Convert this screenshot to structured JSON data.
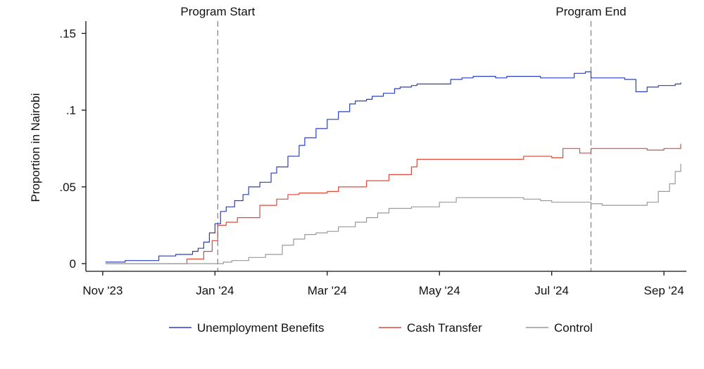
{
  "chart_data": {
    "type": "line",
    "title": "",
    "xlabel": "",
    "ylabel": "Proportion in Nairobi",
    "x_unit": "months since Nov 1, 2023",
    "xlim": [
      -0.3,
      10.4
    ],
    "ylim": [
      -0.005,
      0.158
    ],
    "x_ticks": [
      {
        "value": 0,
        "label": "Nov '23"
      },
      {
        "value": 2,
        "label": "Jan '24"
      },
      {
        "value": 4,
        "label": "Mar '24"
      },
      {
        "value": 6,
        "label": "May '24"
      },
      {
        "value": 8,
        "label": "Jul '24"
      },
      {
        "value": 10,
        "label": "Sep '24"
      }
    ],
    "y_ticks": [
      {
        "value": 0,
        "label": "0"
      },
      {
        "value": 0.05,
        "label": ".05"
      },
      {
        "value": 0.1,
        "label": ".1"
      },
      {
        "value": 0.15,
        "label": ".15"
      }
    ],
    "grid": false,
    "legend_position": "bottom",
    "annotations": [
      {
        "x": 2.05,
        "label": "Program Start"
      },
      {
        "x": 8.7,
        "label": "Program End"
      }
    ],
    "series": [
      {
        "name": "Unemployment Benefits",
        "color": "#2a3fbf",
        "x": [
          0.05,
          0.2,
          0.4,
          0.7,
          1.0,
          1.3,
          1.6,
          1.7,
          1.8,
          1.9,
          2.0,
          2.1,
          2.2,
          2.35,
          2.5,
          2.6,
          2.8,
          3.0,
          3.1,
          3.3,
          3.5,
          3.6,
          3.8,
          4.0,
          4.2,
          4.4,
          4.5,
          4.7,
          4.8,
          5.0,
          5.2,
          5.3,
          5.5,
          5.6,
          5.8,
          6.0,
          6.2,
          6.4,
          6.6,
          6.8,
          7.0,
          7.2,
          7.4,
          7.6,
          7.8,
          8.0,
          8.2,
          8.4,
          8.6,
          8.7,
          8.9,
          9.1,
          9.3,
          9.5,
          9.7,
          9.9,
          10.1,
          10.2,
          10.3
        ],
        "y": [
          0.001,
          0.001,
          0.002,
          0.002,
          0.005,
          0.006,
          0.008,
          0.01,
          0.014,
          0.02,
          0.026,
          0.034,
          0.037,
          0.041,
          0.045,
          0.05,
          0.053,
          0.059,
          0.063,
          0.07,
          0.077,
          0.082,
          0.088,
          0.094,
          0.099,
          0.104,
          0.106,
          0.107,
          0.109,
          0.111,
          0.114,
          0.115,
          0.116,
          0.117,
          0.117,
          0.117,
          0.12,
          0.121,
          0.122,
          0.122,
          0.121,
          0.122,
          0.122,
          0.122,
          0.121,
          0.121,
          0.121,
          0.124,
          0.125,
          0.121,
          0.121,
          0.121,
          0.12,
          0.112,
          0.115,
          0.116,
          0.116,
          0.117,
          0.118
        ]
      },
      {
        "name": "Cash Transfer",
        "color": "#e0483a",
        "x": [
          0.05,
          0.5,
          1.0,
          1.2,
          1.5,
          1.7,
          1.8,
          1.95,
          2.05,
          2.2,
          2.4,
          2.6,
          2.8,
          3.1,
          3.3,
          3.5,
          3.7,
          4.0,
          4.2,
          4.5,
          4.7,
          4.9,
          5.1,
          5.3,
          5.5,
          5.6,
          5.8,
          6.0,
          6.1,
          6.3,
          6.5,
          6.8,
          7.0,
          7.3,
          7.5,
          7.7,
          7.9,
          8.0,
          8.2,
          8.4,
          8.5,
          8.7,
          8.9,
          9.2,
          9.4,
          9.6,
          9.7,
          9.8,
          10.0,
          10.2,
          10.3
        ],
        "y": [
          0.0,
          0.0,
          0.0,
          0.0,
          0.003,
          0.003,
          0.008,
          0.015,
          0.025,
          0.027,
          0.03,
          0.03,
          0.038,
          0.042,
          0.045,
          0.046,
          0.046,
          0.047,
          0.05,
          0.05,
          0.054,
          0.054,
          0.058,
          0.058,
          0.063,
          0.068,
          0.068,
          0.068,
          0.068,
          0.068,
          0.068,
          0.068,
          0.068,
          0.068,
          0.07,
          0.07,
          0.07,
          0.069,
          0.075,
          0.075,
          0.072,
          0.075,
          0.075,
          0.075,
          0.075,
          0.075,
          0.074,
          0.074,
          0.075,
          0.075,
          0.078
        ]
      },
      {
        "name": "Control",
        "color": "#999999",
        "x": [
          0.05,
          0.5,
          1.0,
          1.5,
          2.0,
          2.15,
          2.3,
          2.6,
          2.9,
          3.2,
          3.4,
          3.6,
          3.8,
          4.0,
          4.2,
          4.5,
          4.7,
          4.9,
          5.1,
          5.3,
          5.5,
          5.7,
          6.0,
          6.3,
          6.6,
          6.9,
          7.2,
          7.5,
          7.8,
          8.0,
          8.3,
          8.5,
          8.7,
          8.9,
          9.1,
          9.3,
          9.5,
          9.7,
          9.9,
          10.1,
          10.2,
          10.3
        ],
        "y": [
          0.0,
          0.0,
          0.0,
          0.0,
          0.0,
          0.001,
          0.002,
          0.004,
          0.006,
          0.012,
          0.016,
          0.019,
          0.02,
          0.021,
          0.024,
          0.027,
          0.03,
          0.033,
          0.036,
          0.036,
          0.037,
          0.037,
          0.04,
          0.043,
          0.043,
          0.043,
          0.043,
          0.042,
          0.041,
          0.04,
          0.04,
          0.04,
          0.039,
          0.038,
          0.038,
          0.038,
          0.038,
          0.04,
          0.047,
          0.052,
          0.06,
          0.065
        ]
      }
    ]
  }
}
